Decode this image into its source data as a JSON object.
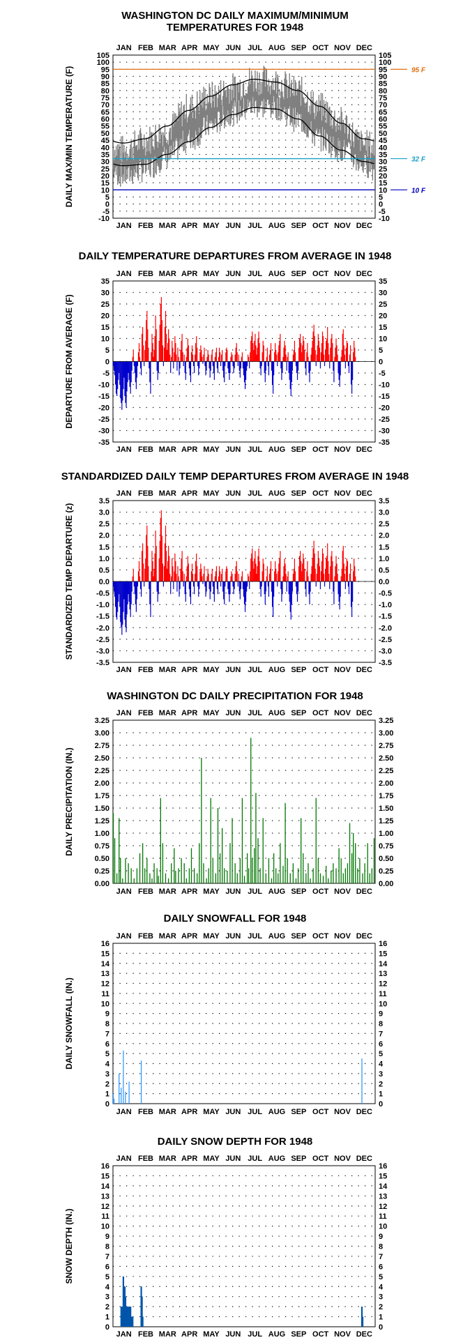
{
  "months": [
    "JAN",
    "FEB",
    "MAR",
    "APR",
    "MAY",
    "JUN",
    "JUL",
    "AUG",
    "SEP",
    "OCT",
    "NOV",
    "DEC"
  ],
  "colors": {
    "hot": "#e07010",
    "freeze": "#1aa0c8",
    "cold": "#0000c0",
    "pos": "#ff0000",
    "neg": "#0000cc",
    "precip": "#007700",
    "snow": "#3399ff",
    "depth": "#0055aa",
    "temp": "#808080"
  },
  "chart_data": [
    {
      "id": "temps",
      "type": "line",
      "title": [
        "WASHINGTON DC DAILY MAXIMUM/MINIMUM",
        "TEMPERATURES FOR 1948"
      ],
      "ylabel": "DAILY MAX/MIN TEMPERATURE (F)",
      "ylim": [
        -10,
        105
      ],
      "ystep": 5,
      "grid": true,
      "ref_lines": [
        {
          "value": 95,
          "label": "95 F",
          "color": "hot"
        },
        {
          "value": 32,
          "label": "32 F",
          "color": "freeze"
        },
        {
          "value": 10,
          "label": "10 F",
          "color": "cold"
        }
      ],
      "normal_max_monthly": [
        43,
        46,
        55,
        66,
        76,
        84,
        88,
        86,
        80,
        69,
        57,
        46
      ],
      "normal_min_monthly": [
        27,
        28,
        35,
        44,
        54,
        63,
        68,
        67,
        60,
        48,
        38,
        30
      ],
      "daily_max_monthly_mean": [
        38,
        45,
        52,
        68,
        76,
        82,
        88,
        86,
        80,
        68,
        58,
        42
      ],
      "daily_min_monthly_mean": [
        20,
        24,
        33,
        45,
        55,
        64,
        69,
        68,
        59,
        46,
        38,
        28
      ],
      "extremes": {
        "max": 98,
        "min": 4
      }
    },
    {
      "id": "departures",
      "type": "bar",
      "title": [
        "DAILY TEMPERATURE DEPARTURES FROM AVERAGE IN 1948"
      ],
      "ylabel": "DEPARTURE FROM AVERAGE (F)",
      "ylim": [
        -35,
        35
      ],
      "ystep": 5,
      "grid": true,
      "days": [
        -2,
        -4,
        -6,
        -10,
        -14,
        -15,
        -12,
        -8,
        -5,
        -10,
        -16,
        -18,
        -21,
        -17,
        -12,
        -7,
        -15,
        -18,
        -20,
        -13,
        -9,
        -5,
        -8,
        -11,
        -14,
        -9,
        -4,
        2,
        5,
        -2,
        -5,
        -9,
        -12,
        -7,
        -2,
        4,
        8,
        2,
        -3,
        -6,
        12,
        15,
        7,
        -2,
        5,
        9,
        18,
        22,
        14,
        6,
        -3,
        -9,
        -14,
        4,
        12,
        8,
        2,
        5,
        11,
        20,
        14,
        -4,
        -8,
        -5,
        9,
        16,
        25,
        28,
        18,
        7,
        -2,
        6,
        15,
        22,
        12,
        5,
        8,
        14,
        10,
        3,
        -5,
        2,
        9,
        6,
        -3,
        4,
        11,
        8,
        3,
        -4,
        6,
        2,
        -6,
        -3,
        5,
        9,
        12,
        4,
        -2,
        3,
        -5,
        -8,
        2,
        6,
        10,
        7,
        -3,
        -6,
        -9,
        4,
        7,
        3,
        -2,
        -5,
        3,
        8,
        11,
        6,
        -2,
        -6,
        -3,
        4,
        7,
        5,
        2,
        -1,
        3,
        6,
        -2,
        -6,
        -4,
        2,
        5,
        3,
        -3,
        -7,
        -4,
        3,
        5,
        -2,
        -5,
        -8,
        2,
        4,
        6,
        -3,
        -5,
        2,
        6,
        4,
        -2,
        3,
        5,
        -4,
        -7,
        -9,
        -2,
        4,
        6,
        5,
        -3,
        -5,
        -8,
        -5,
        2,
        4,
        3,
        -2,
        -5,
        -3,
        3,
        6,
        8,
        4,
        -2,
        3,
        -4,
        -7,
        -3,
        2,
        4,
        -3,
        -6,
        -9,
        -12,
        -8,
        -4,
        -2,
        3,
        2,
        -3,
        4,
        9,
        11,
        13,
        8,
        5,
        9,
        12,
        7,
        3,
        6,
        10,
        13,
        8,
        -3,
        -6,
        -2,
        4,
        9,
        7,
        -5,
        -9,
        -4,
        2,
        6,
        -2,
        -6,
        3,
        5,
        8,
        -4,
        -10,
        -14,
        -6,
        4,
        8,
        5,
        3,
        -2,
        4,
        7,
        9,
        12,
        -3,
        -8,
        -5,
        2,
        6,
        9,
        7,
        3,
        -4,
        2,
        4,
        -5,
        -8,
        -12,
        -15,
        -9,
        -4,
        3,
        5,
        9,
        4,
        -2,
        -5,
        -8,
        -4,
        6,
        10,
        12,
        8,
        4,
        7,
        11,
        9,
        5,
        -3,
        -6,
        4,
        8,
        2,
        -5,
        -9,
        -4,
        3,
        6,
        9,
        13,
        16,
        11,
        5,
        -2,
        3,
        7,
        12,
        9,
        6,
        -3,
        4,
        8,
        13,
        11,
        3,
        -2,
        5,
        9,
        10,
        15,
        8,
        3,
        -3,
        6,
        10,
        12,
        8,
        -4,
        -9,
        2,
        6,
        10,
        7,
        3,
        -5,
        -8,
        -11,
        -6,
        2,
        5,
        12,
        14,
        7,
        3,
        -3,
        6,
        9,
        8,
        -2,
        -5,
        3,
        7,
        -10,
        -14,
        -8,
        4,
        9,
        6,
        2
      ]
    },
    {
      "id": "standardized",
      "type": "bar",
      "title": [
        "STANDARDIZED DAILY TEMP DEPARTURES FROM AVERAGE IN 1948"
      ],
      "ylabel": "STANDARDIZED TEMP DEPARTURE (z)",
      "ylim": [
        -3.5,
        3.5
      ],
      "ystep": 0.5,
      "grid": true,
      "source": "departures",
      "scale": 0.11
    },
    {
      "id": "precip",
      "type": "bar",
      "title": [
        "WASHINGTON DC DAILY PRECIPITATION FOR 1948"
      ],
      "ylabel": "DAILY PRECIPITATION (IN.)",
      "ylim": [
        0,
        3.25
      ],
      "ystep": 0.25,
      "grid": true,
      "events": [
        [
          1,
          1.4
        ],
        [
          3,
          0.9
        ],
        [
          6,
          0.2
        ],
        [
          9,
          1.3
        ],
        [
          11,
          0.5
        ],
        [
          14,
          0.1
        ],
        [
          18,
          0.5
        ],
        [
          22,
          0.4
        ],
        [
          26,
          0.3
        ],
        [
          30,
          0.1
        ],
        [
          34,
          0.3
        ],
        [
          38,
          0.6
        ],
        [
          42,
          0.8
        ],
        [
          45,
          0.3
        ],
        [
          48,
          0.5
        ],
        [
          52,
          0.2
        ],
        [
          55,
          0.1
        ],
        [
          58,
          0.4
        ],
        [
          62,
          0.3
        ],
        [
          64,
          0.15
        ],
        [
          67,
          1.7
        ],
        [
          70,
          0.8
        ],
        [
          74,
          0.2
        ],
        [
          78,
          0.1
        ],
        [
          82,
          0.4
        ],
        [
          86,
          0.7
        ],
        [
          88,
          0.25
        ],
        [
          92,
          0.3
        ],
        [
          96,
          0.5
        ],
        [
          100,
          0.4
        ],
        [
          103,
          0.1
        ],
        [
          107,
          0.3
        ],
        [
          110,
          0.7
        ],
        [
          114,
          0.3
        ],
        [
          118,
          0.2
        ],
        [
          121,
          0.8
        ],
        [
          124,
          2.5
        ],
        [
          127,
          0.4
        ],
        [
          131,
          0.1
        ],
        [
          134,
          0.3
        ],
        [
          137,
          1.7
        ],
        [
          140,
          0.5
        ],
        [
          144,
          0.2
        ],
        [
          147,
          1.5
        ],
        [
          150,
          0.6
        ],
        [
          153,
          1.1
        ],
        [
          156,
          0.3
        ],
        [
          160,
          0.25
        ],
        [
          164,
          0.8
        ],
        [
          167,
          1.3
        ],
        [
          171,
          0.4
        ],
        [
          174,
          0.2
        ],
        [
          178,
          0.5
        ],
        [
          181,
          1.7
        ],
        [
          184,
          0.15
        ],
        [
          188,
          0.6
        ],
        [
          190,
          0.3
        ],
        [
          193,
          2.9
        ],
        [
          195,
          0.5
        ],
        [
          198,
          0.7
        ],
        [
          200,
          1.8
        ],
        [
          203,
          0.9
        ],
        [
          206,
          0.3
        ],
        [
          210,
          1.3
        ],
        [
          214,
          0.2
        ],
        [
          218,
          0.5
        ],
        [
          222,
          0.1
        ],
        [
          225,
          0.6
        ],
        [
          228,
          0.3
        ],
        [
          231,
          0.2
        ],
        [
          234,
          0.8
        ],
        [
          238,
          0.35
        ],
        [
          241,
          1.6
        ],
        [
          244,
          0.5
        ],
        [
          248,
          0.2
        ],
        [
          252,
          0.4
        ],
        [
          256,
          0.1
        ],
        [
          259,
          0.3
        ],
        [
          263,
          1.3
        ],
        [
          266,
          0.6
        ],
        [
          270,
          0.2
        ],
        [
          273,
          0.4
        ],
        [
          276,
          0.1
        ],
        [
          280,
          0.3
        ],
        [
          284,
          1.7
        ],
        [
          287,
          0.5
        ],
        [
          290,
          0.2
        ],
        [
          294,
          0.15
        ],
        [
          298,
          0.35
        ],
        [
          301,
          0.1
        ],
        [
          305,
          0.25
        ],
        [
          308,
          0.4
        ],
        [
          312,
          0.3
        ],
        [
          316,
          0.7
        ],
        [
          319,
          0.5
        ],
        [
          322,
          0.2
        ],
        [
          325,
          0.3
        ],
        [
          328,
          0.4
        ],
        [
          331,
          1.2
        ],
        [
          334,
          0.6
        ],
        [
          336,
          1.0
        ],
        [
          339,
          0.8
        ],
        [
          342,
          0.3
        ],
        [
          345,
          0.5
        ],
        [
          349,
          0.2
        ],
        [
          352,
          0.4
        ],
        [
          356,
          0.8
        ],
        [
          359,
          0.2
        ],
        [
          362,
          0.3
        ],
        [
          365,
          0.9
        ]
      ]
    },
    {
      "id": "snowfall",
      "type": "bar",
      "title": [
        "DAILY SNOWFALL FOR 1948"
      ],
      "ylabel": "DAILY SNOWFALL (IN.)",
      "ylim": [
        0,
        16
      ],
      "ystep": 1,
      "grid": true,
      "events": [
        [
          1,
          1.0
        ],
        [
          2,
          0.5
        ],
        [
          9,
          3.0
        ],
        [
          12,
          1.6
        ],
        [
          15,
          5.3
        ],
        [
          18,
          1.2
        ],
        [
          23,
          2.2
        ],
        [
          40,
          4.3
        ],
        [
          348,
          4.5
        ]
      ]
    },
    {
      "id": "snowdepth",
      "type": "bar",
      "title": [
        "DAILY SNOW DEPTH FOR 1948"
      ],
      "ylabel": "SNOW DEPTH (IN.)",
      "ylim": [
        0,
        16
      ],
      "ystep": 1,
      "grid": true,
      "events": [
        [
          12,
          2
        ],
        [
          13,
          2
        ],
        [
          14,
          1
        ],
        [
          15,
          5
        ],
        [
          16,
          4
        ],
        [
          17,
          4
        ],
        [
          18,
          3
        ],
        [
          19,
          2
        ],
        [
          20,
          2
        ],
        [
          21,
          2
        ],
        [
          22,
          1
        ],
        [
          23,
          2
        ],
        [
          24,
          2
        ],
        [
          25,
          2
        ],
        [
          26,
          1
        ],
        [
          27,
          1
        ],
        [
          28,
          1
        ],
        [
          40,
          4
        ],
        [
          41,
          3
        ],
        [
          42,
          1
        ],
        [
          348,
          2
        ],
        [
          349,
          1
        ]
      ]
    }
  ]
}
